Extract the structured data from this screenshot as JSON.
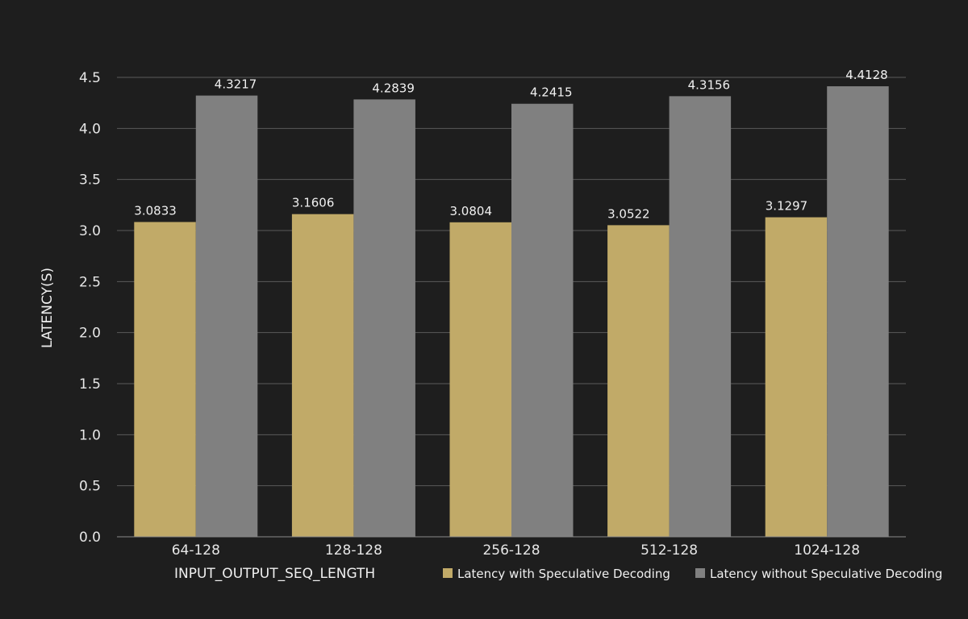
{
  "chart_data": {
    "type": "bar",
    "title": "",
    "xlabel": "INPUT_OUTPUT_SEQ_LENGTH",
    "ylabel": "LATENCY(S)",
    "categories": [
      "64-128",
      "128-128",
      "256-128",
      "512-128",
      "1024-128"
    ],
    "series": [
      {
        "name": "Latency with Speculative Decoding",
        "color": "#c1aa68",
        "values": [
          3.0833,
          3.1606,
          3.0804,
          3.0522,
          3.1297
        ],
        "labels": [
          "3.0833",
          "3.1606",
          "3.0804",
          "3.0522",
          "3.1297"
        ]
      },
      {
        "name": "Latency without Speculative Decoding",
        "color": "#808080",
        "values": [
          4.3217,
          4.2839,
          4.2415,
          4.3156,
          4.4128
        ],
        "labels": [
          "4.3217",
          "4.2839",
          "4.2415",
          "4.3156",
          "4.4128"
        ]
      }
    ],
    "ylim": [
      0,
      4.5
    ],
    "yticks": [
      "0.0",
      "0.5",
      "1.0",
      "1.5",
      "2.0",
      "2.5",
      "3.0",
      "3.5",
      "4.0",
      "4.5"
    ],
    "grid": true,
    "legend_position": "bottom-right",
    "background": "#1e1e1e",
    "gridline_color": "#5a5a5a"
  }
}
